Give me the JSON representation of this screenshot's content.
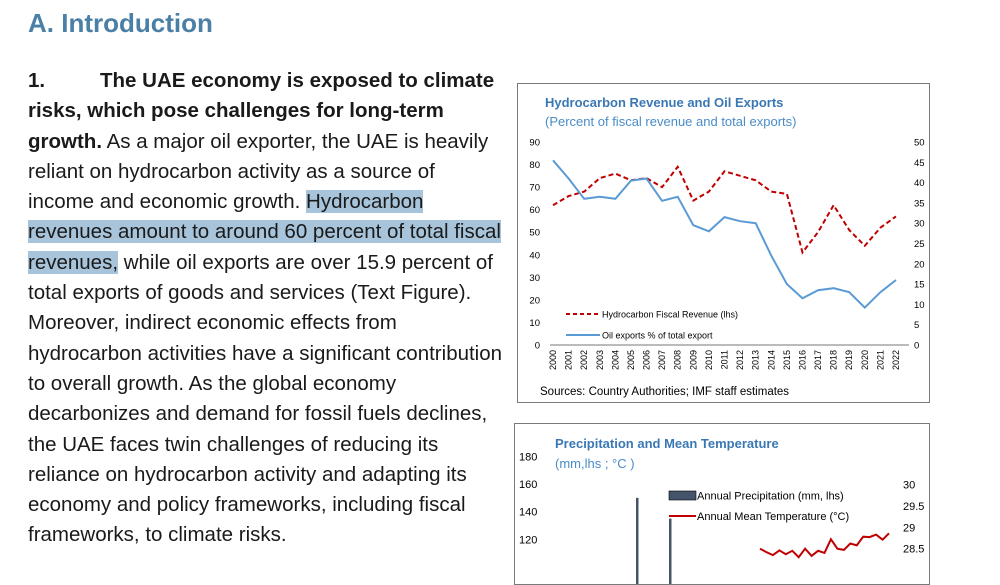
{
  "heading": "A.  Introduction",
  "paragraph": {
    "number": "1.",
    "bold_lead": "The UAE economy is exposed to climate risks, which pose challenges for long-term growth.",
    "text_before_highlight": " As a major oil exporter, the UAE is heavily reliant on hydrocarbon activity as a source of income and economic growth. ",
    "highlighted": "Hydrocarbon revenues amount to around 60 percent of total fiscal revenues,",
    "text_after_highlight": " while oil exports are over 15.9 percent of total exports of goods and services (Text Figure). Moreover, indirect economic effects from hydrocarbon activities have a significant contribution to overall growth. As the global economy decarbonizes and demand for fossil fuels declines, the UAE faces twin challenges of reducing its reliance on hydrocarbon activity and adapting its economy and policy frameworks, including fiscal frameworks, to climate risks."
  },
  "chart_data": [
    {
      "type": "line",
      "title": "Hydrocarbon Revenue and Oil Exports",
      "subtitle": "(Percent of fiscal revenue and total exports)",
      "source": "Sources: Country Authorities; IMF staff estimates",
      "x": [
        "2000",
        "2001",
        "2002",
        "2003",
        "2004",
        "2005",
        "2006",
        "2007",
        "2008",
        "2009",
        "2010",
        "2011",
        "2012",
        "2013",
        "2014",
        "2015",
        "2016",
        "2017",
        "2018",
        "2019",
        "2020",
        "2021",
        "2022"
      ],
      "y_left": {
        "range": [
          0,
          90
        ],
        "ticks": [
          "0",
          "10",
          "20",
          "30",
          "40",
          "50",
          "60",
          "70",
          "80",
          "90"
        ]
      },
      "y_right": {
        "range": [
          0,
          50
        ],
        "ticks": [
          "0",
          "5",
          "10",
          "15",
          "20",
          "25",
          "30",
          "35",
          "40",
          "45",
          "50"
        ]
      },
      "legend_position": "bottom-left",
      "series": [
        {
          "name": "Hydrocarbon Fiscal Revenue (lhs)",
          "axis": "left",
          "style": "dashed",
          "color": "#c00000",
          "values": [
            62,
            66,
            68,
            74,
            76,
            73,
            74,
            70,
            79,
            64,
            68,
            77,
            75,
            73,
            68,
            67,
            41,
            50,
            62,
            51,
            44,
            52,
            57
          ]
        },
        {
          "name": "Oil exports % of total export",
          "axis": "right",
          "style": "solid",
          "color": "#5b9bd5",
          "values": [
            45.5,
            41,
            36,
            36.5,
            36,
            40.5,
            41,
            35.5,
            36.5,
            29.5,
            28,
            31.5,
            30.5,
            30,
            22,
            15,
            11.5,
            13.5,
            14,
            13,
            9.2,
            13,
            16
          ]
        }
      ]
    },
    {
      "type": "bar",
      "title": "Precipitation and Mean Temperature",
      "subtitle": "(mm,lhs ; °C )",
      "y_left": {
        "range": [
          100,
          180
        ],
        "ticks": [
          "120",
          "140",
          "160",
          "180"
        ]
      },
      "y_right": {
        "range": [
          28,
          30
        ],
        "ticks": [
          "28.5",
          "29",
          "29.5",
          "30"
        ]
      },
      "legend_position": "top-right",
      "series": [
        {
          "name": "Annual Precipitation (mm, lhs)",
          "axis": "left",
          "color": "#44546a",
          "values": [
            150,
            135
          ]
        },
        {
          "name": "Annual Mean Temperature (°C)",
          "axis": "right",
          "color": "#c00000",
          "values": [
            28.5,
            28.42,
            28.35,
            28.46,
            28.37,
            28.45,
            28.3,
            28.5,
            28.33,
            28.45,
            28.4,
            28.72,
            28.5,
            28.47,
            28.62,
            28.58,
            28.78,
            28.77,
            28.83,
            28.71,
            28.86
          ]
        }
      ]
    }
  ]
}
